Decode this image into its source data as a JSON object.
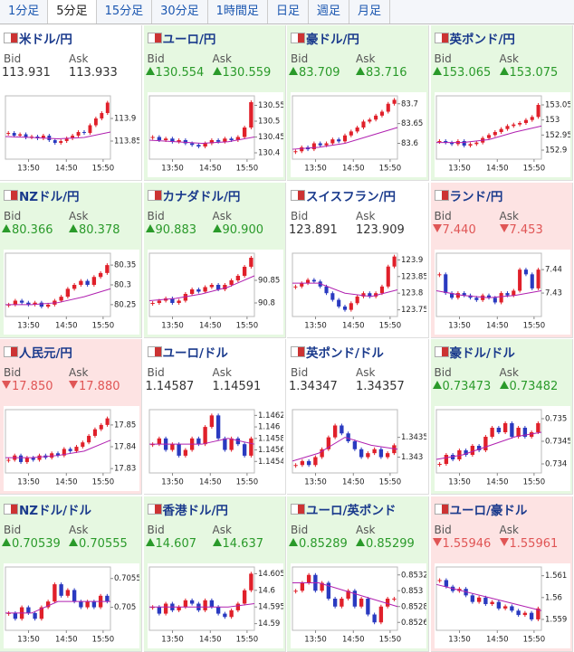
{
  "tabs": [
    "1分足",
    "5分足",
    "15分足",
    "30分足",
    "1時間足",
    "日足",
    "週足",
    "月足"
  ],
  "selected_tab": 1,
  "bid_label": "Bid",
  "ask_label": "Ask",
  "xticks": [
    "13:50",
    "14:50",
    "15:50"
  ],
  "tiles": [
    {
      "pair": "米ドル/円",
      "bid": "113.931",
      "ask": "113.933",
      "trend": "flat",
      "ylim": [
        113.81,
        113.95
      ],
      "yticks": [
        113.9,
        113.85
      ],
      "closes": [
        113.868,
        113.862,
        113.865,
        113.858,
        113.86,
        113.856,
        113.862,
        113.852,
        113.846,
        113.85,
        113.856,
        113.862,
        113.87,
        113.868,
        113.885,
        113.9,
        113.912,
        113.935
      ],
      "ma": [
        113.86,
        113.858,
        113.855,
        113.858,
        113.87
      ]
    },
    {
      "pair": "ユーロ/円",
      "bid": "130.554",
      "ask": "130.559",
      "trend": "up",
      "ylim": [
        130.38,
        130.58
      ],
      "yticks": [
        130.55,
        130.5,
        130.45,
        130.4
      ],
      "closes": [
        130.45,
        130.44,
        130.445,
        130.435,
        130.44,
        130.43,
        130.425,
        130.42,
        130.43,
        130.44,
        130.435,
        130.445,
        130.44,
        130.45,
        130.48,
        130.56
      ],
      "ma": [
        130.44,
        130.435,
        130.43,
        130.435,
        130.45
      ]
    },
    {
      "pair": "豪ドル/円",
      "bid": "83.709",
      "ask": "83.716",
      "trend": "up",
      "ylim": [
        83.56,
        83.72
      ],
      "yticks": [
        83.7,
        83.65,
        83.6
      ],
      "closes": [
        83.58,
        83.59,
        83.585,
        83.6,
        83.595,
        83.6,
        83.61,
        83.605,
        83.62,
        83.63,
        83.64,
        83.655,
        83.66,
        83.67,
        83.68,
        83.7,
        83.71
      ],
      "ma": [
        83.585,
        83.59,
        83.6,
        83.62,
        83.64
      ]
    },
    {
      "pair": "英ポンド/円",
      "bid": "153.065",
      "ask": "153.075",
      "trend": "up",
      "ylim": [
        152.87,
        153.08
      ],
      "yticks": [
        153.05,
        153,
        152.95,
        152.9
      ],
      "closes": [
        152.93,
        152.925,
        152.92,
        152.93,
        152.915,
        152.92,
        152.925,
        152.94,
        152.95,
        152.96,
        152.97,
        152.98,
        152.985,
        152.99,
        153,
        153.01,
        153.05
      ],
      "ma": [
        152.925,
        152.925,
        152.935,
        152.96,
        152.98
      ]
    },
    {
      "pair": "NZドル/円",
      "bid": "80.366",
      "ask": "80.378",
      "trend": "up",
      "ylim": [
        80.22,
        80.38
      ],
      "yticks": [
        80.35,
        80.3,
        80.25
      ],
      "closes": [
        80.25,
        80.26,
        80.255,
        80.25,
        80.255,
        80.245,
        80.25,
        80.26,
        80.27,
        80.29,
        80.3,
        80.31,
        80.3,
        80.32,
        80.33,
        80.35
      ],
      "ma": [
        80.25,
        80.25,
        80.255,
        80.27,
        80.29
      ]
    },
    {
      "pair": "カナダドル/円",
      "bid": "90.883",
      "ask": "90.900",
      "trend": "up",
      "ylim": [
        90.77,
        90.91
      ],
      "yticks": [
        90.85,
        90.8
      ],
      "closes": [
        90.8,
        90.805,
        90.81,
        90.8,
        90.805,
        90.82,
        90.83,
        90.825,
        90.835,
        90.84,
        90.83,
        90.84,
        90.85,
        90.86,
        90.88,
        90.9
      ],
      "ma": [
        90.805,
        90.81,
        90.82,
        90.835,
        90.86
      ]
    },
    {
      "pair": "スイスフラン/円",
      "bid": "123.891",
      "ask": "123.909",
      "trend": "flat",
      "ylim": [
        123.73,
        123.92
      ],
      "yticks": [
        123.9,
        123.85,
        123.8,
        123.75
      ],
      "closes": [
        123.82,
        123.83,
        123.84,
        123.835,
        123.82,
        123.8,
        123.78,
        123.76,
        123.75,
        123.77,
        123.79,
        123.8,
        123.79,
        123.8,
        123.82,
        123.88,
        123.91
      ],
      "ma": [
        123.83,
        123.83,
        123.8,
        123.79,
        123.81
      ]
    },
    {
      "pair": "ランド/円",
      "bid": "7.440",
      "ask": "7.453",
      "trend": "down",
      "ylim": [
        7.42,
        7.447
      ],
      "yticks": [
        7.44,
        7.43
      ],
      "closes": [
        7.438,
        7.43,
        7.428,
        7.43,
        7.429,
        7.428,
        7.427,
        7.429,
        7.428,
        7.426,
        7.43,
        7.429,
        7.431,
        7.44,
        7.438,
        7.432,
        7.44
      ],
      "ma": [
        7.431,
        7.429,
        7.428,
        7.429,
        7.431
      ]
    },
    {
      "pair": "人民元/円",
      "bid": "17.850",
      "ask": "17.880",
      "trend": "down",
      "ylim": [
        17.828,
        17.857
      ],
      "yticks": [
        17.85,
        17.84,
        17.83
      ],
      "closes": [
        17.834,
        17.836,
        17.833,
        17.835,
        17.834,
        17.836,
        17.835,
        17.837,
        17.836,
        17.839,
        17.838,
        17.84,
        17.842,
        17.845,
        17.848,
        17.85,
        17.853
      ],
      "ma": [
        17.835,
        17.835,
        17.836,
        17.838,
        17.843
      ]
    },
    {
      "pair": "ユーロ/ドル",
      "bid": "1.14587",
      "ask": "1.14591",
      "trend": "flat",
      "ylim": [
        1.1452,
        1.1463
      ],
      "yticks": [
        1.1462,
        1.146,
        1.1458,
        1.1456,
        1.1454
      ],
      "closes": [
        1.1457,
        1.1458,
        1.1456,
        1.1457,
        1.1455,
        1.1456,
        1.1458,
        1.1457,
        1.146,
        1.1462,
        1.1458,
        1.1456,
        1.1458,
        1.1457,
        1.1455,
        1.1458
      ],
      "ma": [
        1.1457,
        1.1457,
        1.1457,
        1.1458,
        1.1457
      ]
    },
    {
      "pair": "英ポンド/ドル",
      "bid": "1.34347",
      "ask": "1.34357",
      "trend": "flat",
      "ylim": [
        1.3426,
        1.3442
      ],
      "yticks": [
        1.3435,
        1.343
      ],
      "closes": [
        1.3428,
        1.3429,
        1.3428,
        1.343,
        1.3432,
        1.3435,
        1.3438,
        1.3436,
        1.3434,
        1.3432,
        1.343,
        1.3431,
        1.3432,
        1.343,
        1.3431,
        1.3433
      ],
      "ma": [
        1.3429,
        1.3431,
        1.3435,
        1.3433,
        1.3432
      ]
    },
    {
      "pair": "豪ドル/ドル",
      "bid": "0.73473",
      "ask": "0.73482",
      "trend": "up",
      "ylim": [
        0.7338,
        0.7352
      ],
      "yticks": [
        0.735,
        0.7345,
        0.734
      ],
      "closes": [
        0.734,
        0.7342,
        0.7341,
        0.7343,
        0.7342,
        0.7344,
        0.7343,
        0.7346,
        0.7348,
        0.7347,
        0.7349,
        0.7346,
        0.7348,
        0.7346,
        0.7347,
        0.7349
      ],
      "ma": [
        0.7341,
        0.7342,
        0.7344,
        0.7346,
        0.7347
      ]
    },
    {
      "pair": "NZドル/ドル",
      "bid": "0.70539",
      "ask": "0.70555",
      "trend": "up",
      "ylim": [
        0.7046,
        0.7057
      ],
      "yticks": [
        0.7055,
        0.705
      ],
      "closes": [
        0.7049,
        0.7048,
        0.705,
        0.7049,
        0.7048,
        0.705,
        0.7051,
        0.7054,
        0.7052,
        0.7053,
        0.7051,
        0.705,
        0.7051,
        0.705,
        0.7052,
        0.7051
      ],
      "ma": [
        0.7049,
        0.7049,
        0.7051,
        0.7051,
        0.7051
      ]
    },
    {
      "pair": "香港ドル/円",
      "bid": "14.607",
      "ask": "14.637",
      "trend": "up",
      "ylim": [
        14.588,
        14.607
      ],
      "yticks": [
        14.605,
        14.6,
        14.595,
        14.59
      ],
      "closes": [
        14.595,
        14.593,
        14.596,
        14.594,
        14.595,
        14.597,
        14.596,
        14.594,
        14.597,
        14.595,
        14.593,
        14.592,
        14.594,
        14.596,
        14.6,
        14.605
      ],
      "ma": [
        14.595,
        14.595,
        14.595,
        14.595,
        14.596
      ]
    },
    {
      "pair": "ユーロ/英ポンド",
      "bid": "0.85289",
      "ask": "0.85299",
      "trend": "up",
      "ylim": [
        0.8525,
        0.8533
      ],
      "yticks": [
        0.8532,
        0.853,
        0.8528,
        0.8526
      ],
      "closes": [
        0.853,
        0.8531,
        0.8532,
        0.853,
        0.8531,
        0.8529,
        0.8528,
        0.8529,
        0.853,
        0.8528,
        0.8529,
        0.8527,
        0.8526,
        0.8528,
        0.8529,
        0.8529
      ],
      "ma": [
        0.8531,
        0.8531,
        0.853,
        0.8529,
        0.8528
      ]
    },
    {
      "pair": "ユーロ/豪ドル",
      "bid": "1.55946",
      "ask": "1.55961",
      "trend": "down",
      "ylim": [
        1.5585,
        1.5614
      ],
      "yticks": [
        1.561,
        1.56,
        1.559
      ],
      "closes": [
        1.5608,
        1.5605,
        1.5603,
        1.5604,
        1.5601,
        1.5598,
        1.56,
        1.5597,
        1.5598,
        1.5595,
        1.5596,
        1.5594,
        1.5592,
        1.5593,
        1.559,
        1.5595
      ],
      "ma": [
        1.5606,
        1.5603,
        1.56,
        1.5597,
        1.5594
      ]
    }
  ]
}
